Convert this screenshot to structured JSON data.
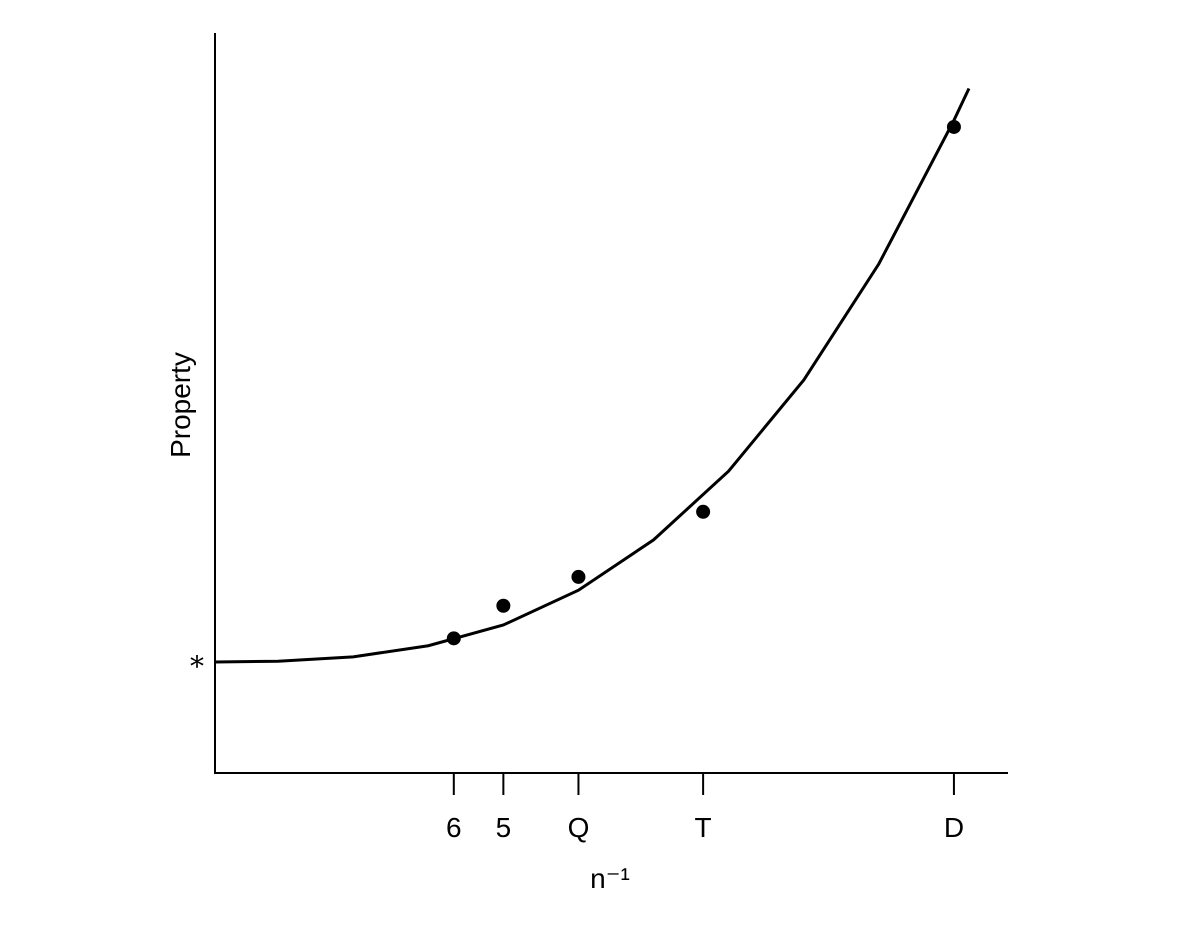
{
  "chart_data": {
    "type": "scatter",
    "x_label": "n⁻¹",
    "y_label": "Property",
    "xlim": [
      0.008,
      0.536
    ],
    "ylim": [
      0,
      1
    ],
    "xticks": [
      {
        "value": 0.167,
        "label": "6"
      },
      {
        "value": 0.2,
        "label": "5"
      },
      {
        "value": 0.25,
        "label": "Q"
      },
      {
        "value": 0.333,
        "label": "T"
      },
      {
        "value": 0.5,
        "label": "D"
      }
    ],
    "yticks": [
      {
        "value": 0.15,
        "label": "*"
      }
    ],
    "points": {
      "x": [
        0.167,
        0.2,
        0.25,
        0.333,
        0.5
      ],
      "values": [
        0.182,
        0.226,
        0.265,
        0.353,
        0.873
      ],
      "color": "#000000"
    },
    "curve": {
      "x": [
        0.008,
        0.05,
        0.1,
        0.15,
        0.2,
        0.25,
        0.3,
        0.35,
        0.4,
        0.45,
        0.5,
        0.51
      ],
      "values": [
        0.15,
        0.151,
        0.157,
        0.172,
        0.2,
        0.247,
        0.315,
        0.408,
        0.531,
        0.688,
        0.882,
        0.925
      ],
      "color": "#000000"
    }
  }
}
